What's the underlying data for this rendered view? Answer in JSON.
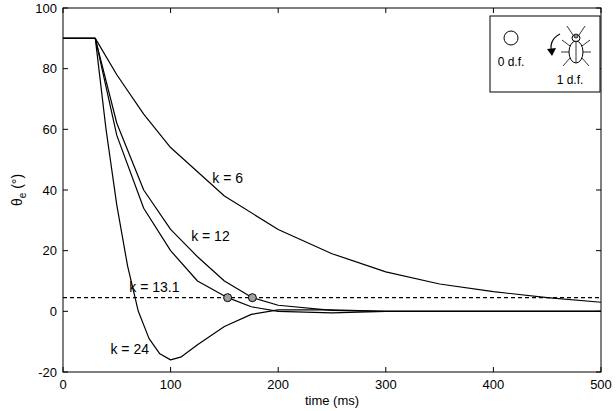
{
  "chart_data": {
    "type": "line",
    "xlabel": "time (ms)",
    "ylabel": "θe (°)",
    "xlim": [
      0,
      500
    ],
    "ylim": [
      -20,
      100
    ],
    "xticks": [
      0,
      100,
      200,
      300,
      400,
      500
    ],
    "yticks": [
      -20,
      0,
      20,
      40,
      60,
      80,
      100
    ],
    "grid": false,
    "series": [
      {
        "color": "#000000",
        "line_style": "solid",
        "x": [
          0,
          30,
          50,
          75,
          100,
          150,
          200,
          250,
          300,
          350,
          400,
          450,
          500
        ],
        "values": [
          90,
          90,
          78,
          65,
          54,
          38,
          27,
          19,
          13,
          9,
          6.5,
          4.5,
          3
        ]
      },
      {
        "color": "#000000",
        "line_style": "solid",
        "x": [
          0,
          30,
          50,
          75,
          100,
          125,
          150,
          176,
          200,
          250,
          300,
          500
        ],
        "values": [
          90,
          90,
          62,
          40,
          27,
          18,
          10,
          4.5,
          2,
          0.3,
          0,
          0
        ]
      },
      {
        "color": "#000000",
        "line_style": "solid",
        "x": [
          0,
          30,
          50,
          75,
          100,
          125,
          153,
          175,
          200,
          250,
          300,
          500
        ],
        "values": [
          90,
          90,
          58,
          34,
          20,
          10,
          4.5,
          1.5,
          0,
          -0.5,
          0,
          0
        ]
      },
      {
        "color": "#000000",
        "line_style": "solid",
        "x": [
          0,
          30,
          40,
          50,
          60,
          70,
          80,
          90,
          100,
          110,
          125,
          150,
          175,
          200,
          250,
          300,
          500
        ],
        "values": [
          90,
          90,
          60,
          35,
          15,
          0,
          -9,
          -14,
          -16,
          -15,
          -11,
          -5,
          -1,
          0.5,
          0.5,
          0,
          0
        ]
      },
      {
        "color": "#000000",
        "line_style": "dashed",
        "x": [
          0,
          500
        ],
        "values": [
          4.5,
          4.5
        ]
      },
      {
        "type": "scatter",
        "marker": "circle",
        "color": "#a0a0a0",
        "x": [
          153,
          176
        ],
        "values": [
          4.5,
          4.5
        ]
      }
    ],
    "annotations": [
      {
        "text": "k = 6",
        "x": 153,
        "y": 44
      },
      {
        "text": "k = 12",
        "x": 137,
        "y": 25
      },
      {
        "text": "k = 13.1",
        "x": 85,
        "y": 8
      },
      {
        "text": "k = 24",
        "x": 62,
        "y": -12.5
      }
    ],
    "inset": {
      "labels": [
        "0 d.f.",
        "1 d.f."
      ]
    }
  }
}
